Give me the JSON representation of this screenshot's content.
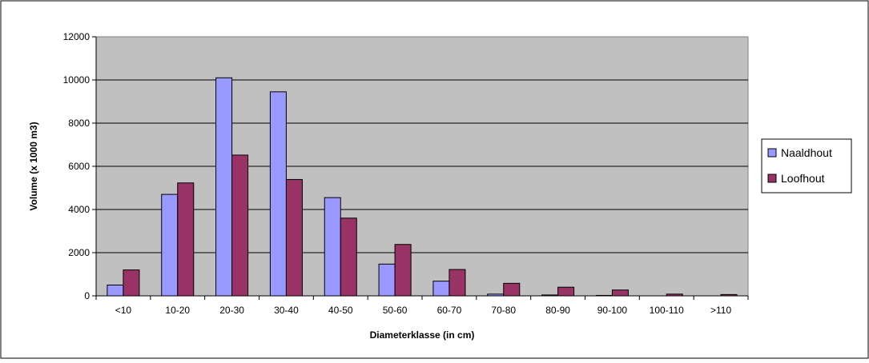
{
  "chart_data": {
    "type": "bar",
    "title": "",
    "xlabel": "Diameterklasse (in cm)",
    "ylabel": "Volume (x 1000 m3)",
    "categories": [
      "<10",
      "10-20",
      "20-30",
      "30-40",
      "40-50",
      "50-60",
      "60-70",
      "70-80",
      "80-90",
      "90-100",
      "100-110",
      ">110"
    ],
    "ylim": [
      0,
      12000
    ],
    "yticks": [
      0,
      2000,
      4000,
      6000,
      8000,
      10000,
      12000
    ],
    "grid": true,
    "legend_position": "right",
    "plot_background": "#c0c0c0",
    "series": [
      {
        "name": "Naaldhout",
        "color": "#9999ff",
        "values": [
          500,
          4700,
          10100,
          9450,
          4550,
          1470,
          680,
          80,
          40,
          20,
          0,
          0
        ]
      },
      {
        "name": "Loofhout",
        "color": "#993366",
        "values": [
          1200,
          5230,
          6520,
          5390,
          3600,
          2380,
          1220,
          580,
          400,
          270,
          80,
          60
        ]
      }
    ]
  }
}
